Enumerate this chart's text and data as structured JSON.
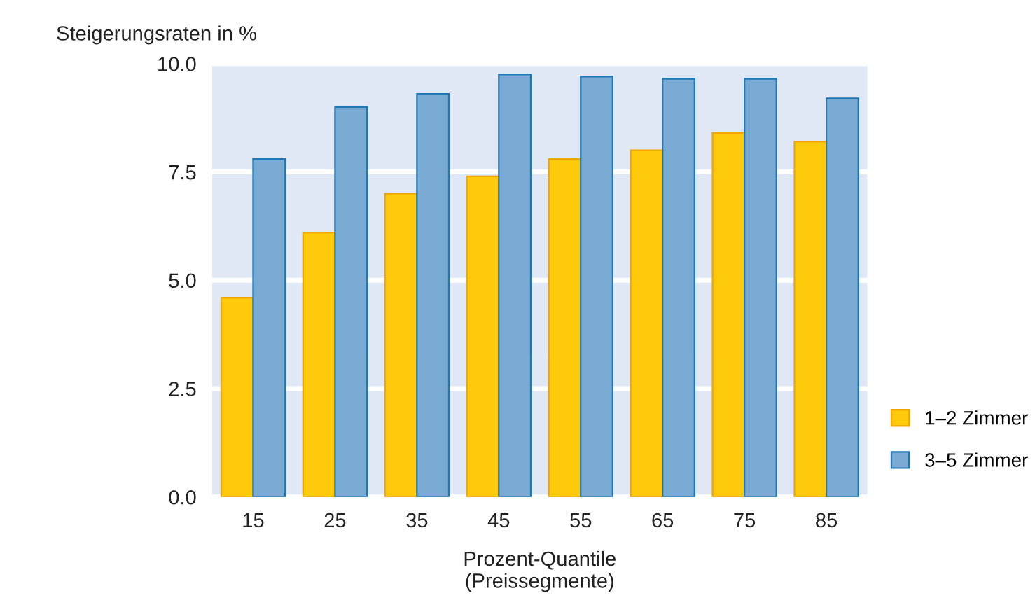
{
  "chart_data": {
    "type": "bar",
    "ylabel": "Steigerungsraten in %",
    "xlabel": "Prozent-Quantile\n(Preissegmente)",
    "categories": [
      "15",
      "25",
      "35",
      "45",
      "55",
      "65",
      "75",
      "85"
    ],
    "series": [
      {
        "name": "1–2 Zimmer",
        "color": "#ffc90c",
        "values": [
          4.6,
          6.1,
          7.0,
          7.4,
          7.8,
          8.0,
          8.4,
          8.2
        ]
      },
      {
        "name": "3–5 Zimmer",
        "color": "#79aad4",
        "values": [
          7.8,
          9.0,
          9.3,
          9.75,
          9.7,
          9.65,
          9.65,
          9.2
        ]
      }
    ],
    "ylim": [
      0,
      10
    ],
    "yticks": [
      {
        "value": 0,
        "label": "0.0"
      },
      {
        "value": 2.5,
        "label": "2.5"
      },
      {
        "value": 5,
        "label": "5.0"
      },
      {
        "value": 7.5,
        "label": "7.5"
      },
      {
        "value": 10,
        "label": "10.0"
      }
    ],
    "grid": "y",
    "legend": "right"
  }
}
